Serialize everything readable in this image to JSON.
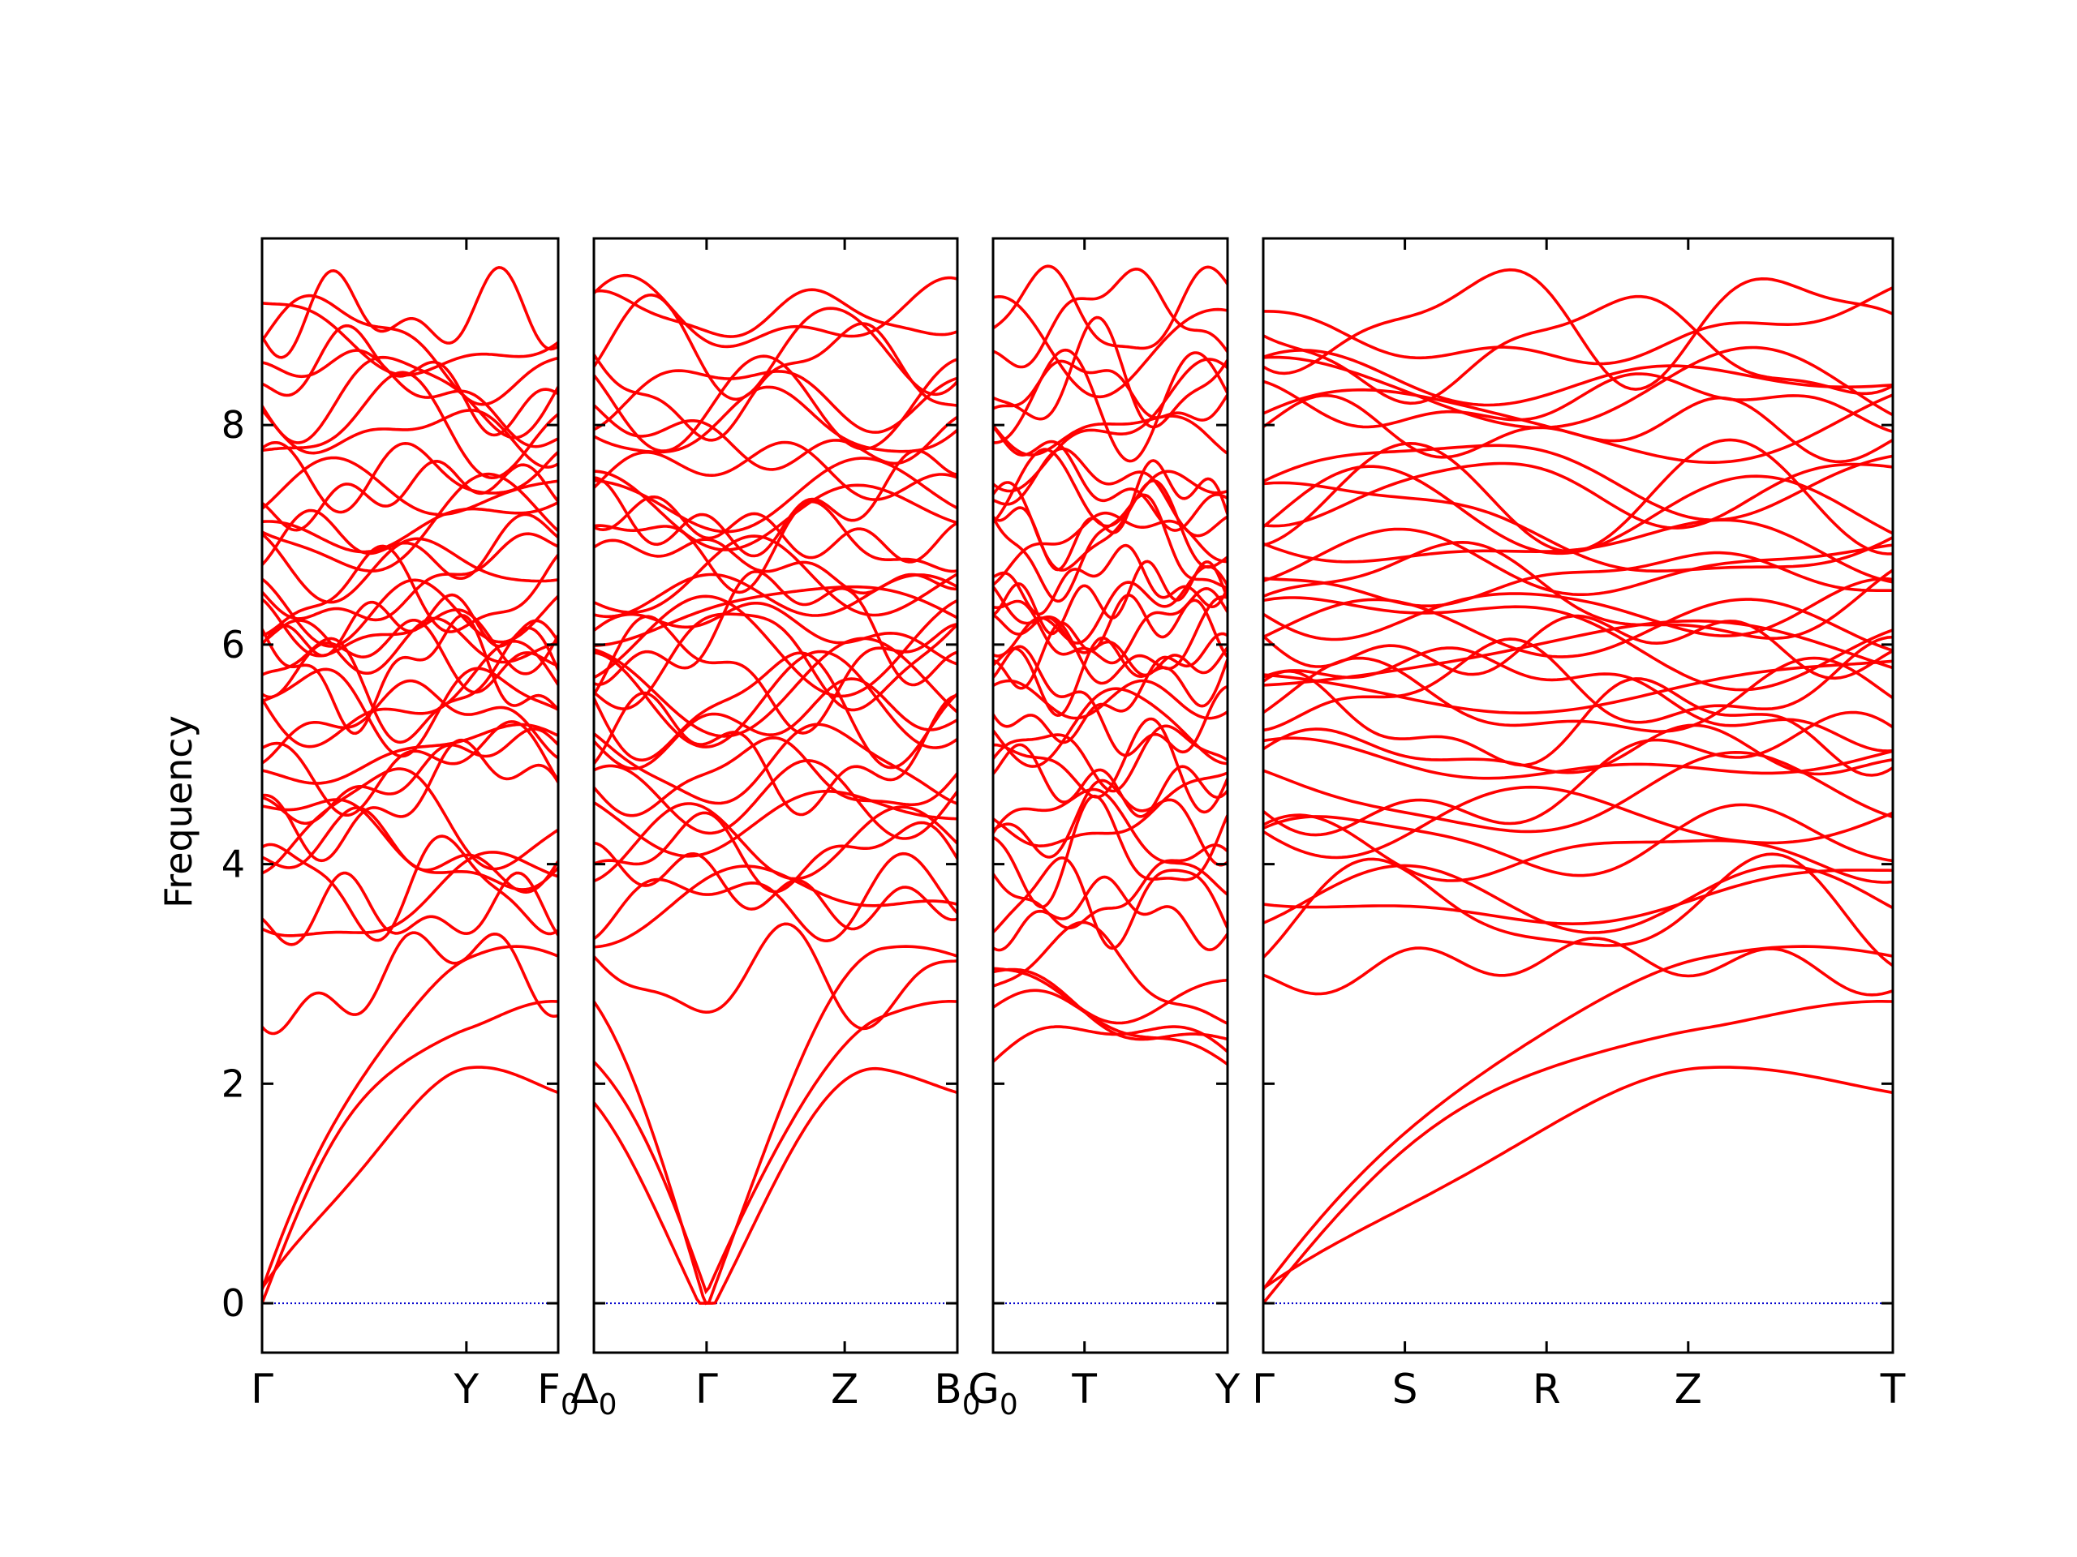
{
  "chart_data": {
    "type": "line",
    "title": "",
    "ylabel": "Frequency",
    "xlabel": "",
    "ylim": [
      -0.45,
      9.7
    ],
    "yticks": [
      "0",
      "2",
      "4",
      "6",
      "8"
    ],
    "grid": false,
    "legend": "none",
    "colors": {
      "band": "#ff0000",
      "zero_line": "#0000cc",
      "axes": "#000000"
    },
    "panels": [
      {
        "name": "panel-1",
        "labels": [
          "Γ",
          "Y",
          "F0"
        ],
        "positions": [
          0,
          0.69,
          1
        ]
      },
      {
        "name": "panel-2",
        "labels": [
          "Δ0",
          "Γ",
          "Z",
          "B0"
        ],
        "positions": [
          0,
          0.31,
          0.69,
          1
        ]
      },
      {
        "name": "panel-3",
        "labels": [
          "G0",
          "T",
          "Y"
        ],
        "positions": [
          0,
          0.39,
          1
        ]
      },
      {
        "name": "panel-4",
        "labels": [
          "Γ",
          "S",
          "R",
          "Z",
          "T"
        ],
        "positions": [
          0,
          0.225,
          0.45,
          0.675,
          1
        ]
      }
    ],
    "note_values": "Dense band structure: ~48 red dispersion curves per panel spanning 0 to ~9.2; acoustic branches start at 0 at Γ."
  }
}
